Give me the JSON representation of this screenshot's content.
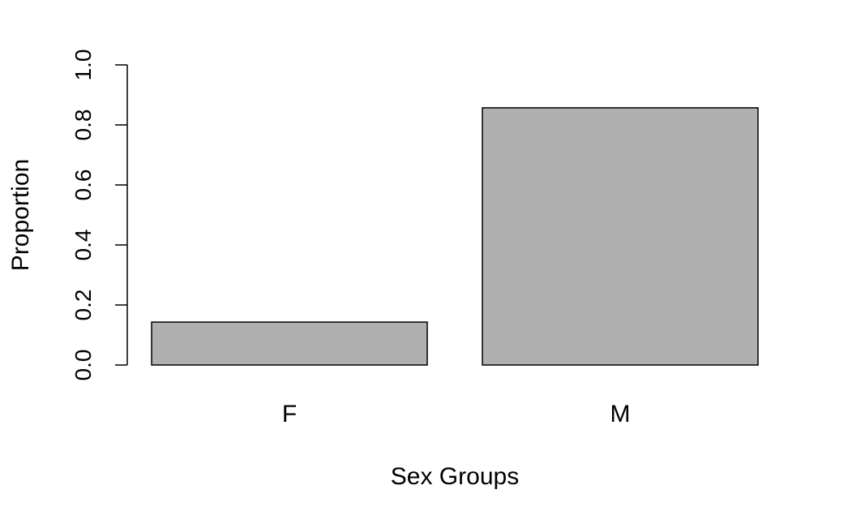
{
  "chart_data": {
    "type": "bar",
    "categories": [
      "F",
      "M"
    ],
    "values": [
      0.143,
      0.857
    ],
    "title": "",
    "xlabel": "Sex Groups",
    "ylabel": "Proportion",
    "ylim": [
      0,
      1
    ],
    "yticks": [
      "0.0",
      "0.2",
      "0.4",
      "0.6",
      "0.8",
      "1.0"
    ],
    "grid": false,
    "bar_color": "#b0b0b0",
    "border_color": "#000000"
  }
}
